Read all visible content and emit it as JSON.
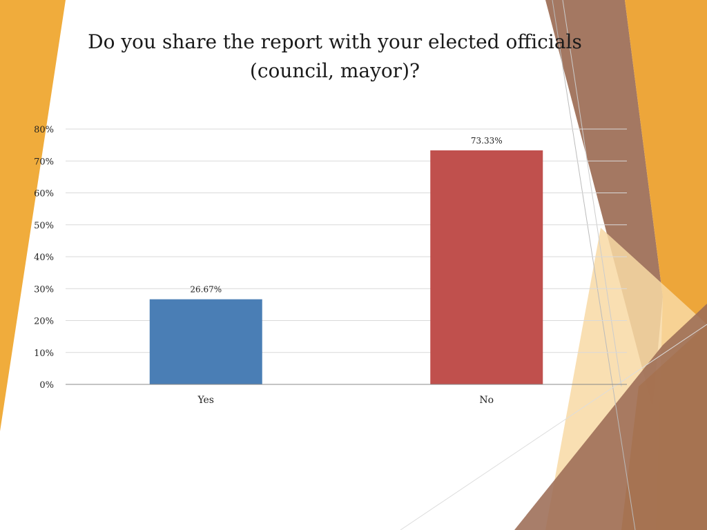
{
  "slide": {
    "title": "Do you share the report with your elected officials (council, mayor)?"
  },
  "colors": {
    "orange": "#f0ac3c",
    "light_orange": "#f8d9a4",
    "brown": "#9c6c55",
    "bar_blue": "#4a7eb5",
    "bar_red": "#c0504d",
    "gridline": "#d9d9d9"
  },
  "chart_data": {
    "type": "bar",
    "title": "Do you share the report with your elected officials (council, mayor)?",
    "categories": [
      "Yes",
      "No"
    ],
    "values": [
      26.67,
      73.33
    ],
    "data_labels": [
      "26.67%",
      "73.33%"
    ],
    "bar_colors": [
      "#4a7eb5",
      "#c0504d"
    ],
    "ylim": [
      0,
      80
    ],
    "yticks": [
      0,
      10,
      20,
      30,
      40,
      50,
      60,
      70,
      80
    ],
    "ytick_labels": [
      "0%",
      "10%",
      "20%",
      "30%",
      "40%",
      "50%",
      "60%",
      "70%",
      "80%"
    ],
    "grid": true,
    "legend": "none",
    "xlabel": "",
    "ylabel": ""
  }
}
